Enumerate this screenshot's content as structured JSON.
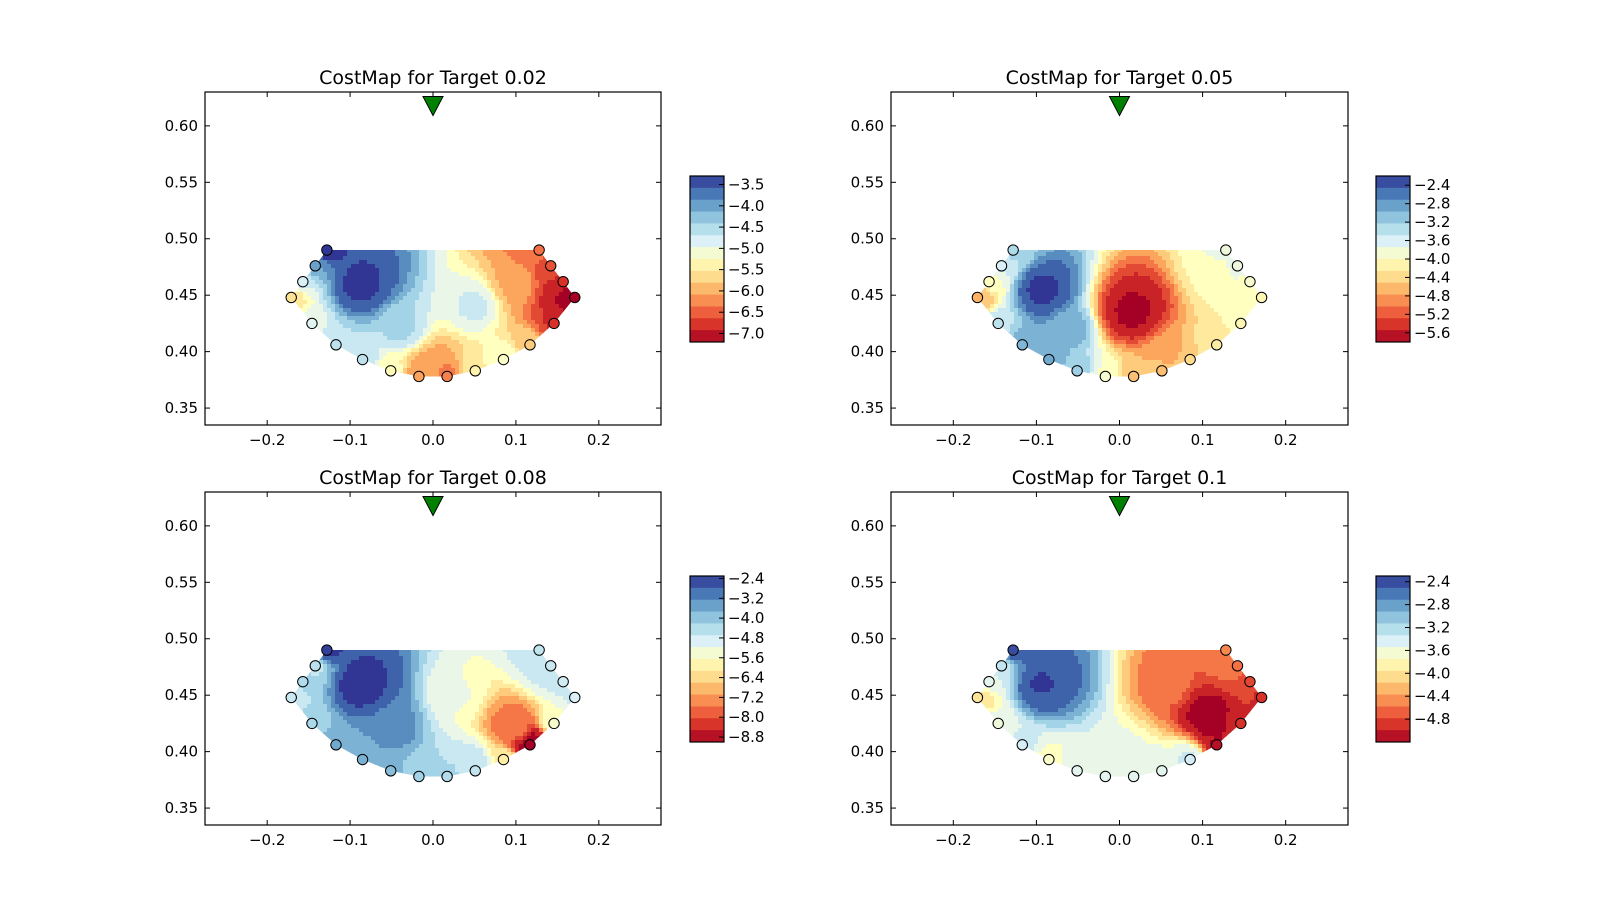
{
  "chart_data": [
    {
      "type": "heatmap",
      "title": "CostMap for Target 0.02",
      "xlim": [
        -0.275,
        0.275
      ],
      "ylim": [
        0.335,
        0.63
      ],
      "xticks": [
        "−0.2",
        "−0.1",
        "0.0",
        "0.1",
        "0.2"
      ],
      "xtick_values": [
        -0.2,
        -0.1,
        0.0,
        0.1,
        0.2
      ],
      "yticks": [
        "0.35",
        "0.40",
        "0.45",
        "0.50",
        "0.55",
        "0.60"
      ],
      "ytick_values": [
        0.35,
        0.4,
        0.45,
        0.5,
        0.55,
        0.6
      ],
      "colorbar": {
        "range": [
          -7.2,
          -3.3
        ],
        "ticks": [
          "−3.5",
          "−4.0",
          "−4.5",
          "−5.0",
          "−5.5",
          "−6.0",
          "−6.5",
          "−7.0"
        ],
        "tick_values": [
          -3.5,
          -4.0,
          -4.5,
          -5.0,
          -5.5,
          -6.0,
          -6.5,
          -7.0
        ]
      },
      "source_marker": {
        "x": 0.0,
        "y": 0.618,
        "shape": "triangle-down",
        "color": "#008000"
      },
      "field_sources": [
        {
          "x": -0.09,
          "y": 0.46,
          "v": -3.4,
          "w": 3
        },
        {
          "x": 0.165,
          "y": 0.45,
          "v": -7.1,
          "w": 3
        },
        {
          "x": 0.0,
          "y": 0.38,
          "v": -6.2,
          "w": 2
        },
        {
          "x": -0.17,
          "y": 0.448,
          "v": -5.5,
          "w": 1
        },
        {
          "x": 0.05,
          "y": 0.44,
          "v": -4.8,
          "w": 1
        },
        {
          "x": 0.1,
          "y": 0.46,
          "v": -6.0,
          "w": 1
        },
        {
          "x": -0.04,
          "y": 0.42,
          "v": -4.5,
          "w": 1
        }
      ],
      "sensors": [
        {
          "x": -0.128,
          "y": 0.49,
          "v": -3.3
        },
        {
          "x": -0.142,
          "y": 0.476,
          "v": -4.0
        },
        {
          "x": -0.157,
          "y": 0.462,
          "v": -4.8
        },
        {
          "x": -0.171,
          "y": 0.448,
          "v": -5.6
        },
        {
          "x": -0.146,
          "y": 0.425,
          "v": -4.9
        },
        {
          "x": -0.117,
          "y": 0.406,
          "v": -4.6
        },
        {
          "x": -0.085,
          "y": 0.393,
          "v": -4.6
        },
        {
          "x": -0.051,
          "y": 0.383,
          "v": -5.3
        },
        {
          "x": -0.017,
          "y": 0.378,
          "v": -6.1
        },
        {
          "x": 0.017,
          "y": 0.378,
          "v": -6.3
        },
        {
          "x": 0.051,
          "y": 0.383,
          "v": -5.4
        },
        {
          "x": 0.085,
          "y": 0.393,
          "v": -5.2
        },
        {
          "x": 0.117,
          "y": 0.406,
          "v": -5.8
        },
        {
          "x": 0.146,
          "y": 0.425,
          "v": -6.8
        },
        {
          "x": 0.171,
          "y": 0.448,
          "v": -7.2
        },
        {
          "x": 0.157,
          "y": 0.462,
          "v": -6.8
        },
        {
          "x": 0.142,
          "y": 0.476,
          "v": -6.6
        },
        {
          "x": 0.128,
          "y": 0.49,
          "v": -6.4
        }
      ]
    },
    {
      "type": "heatmap",
      "title": "CostMap for Target 0.05",
      "xlim": [
        -0.275,
        0.275
      ],
      "ylim": [
        0.335,
        0.63
      ],
      "xticks": [
        "−0.2",
        "−0.1",
        "0.0",
        "0.1",
        "0.2"
      ],
      "xtick_values": [
        -0.2,
        -0.1,
        0.0,
        0.1,
        0.2
      ],
      "yticks": [
        "0.35",
        "0.40",
        "0.45",
        "0.50",
        "0.55",
        "0.60"
      ],
      "ytick_values": [
        0.35,
        0.4,
        0.45,
        0.5,
        0.55,
        0.6
      ],
      "colorbar": {
        "range": [
          -5.8,
          -2.2
        ],
        "ticks": [
          "−2.4",
          "−2.8",
          "−3.2",
          "−3.6",
          "−4.0",
          "−4.4",
          "−4.8",
          "−5.2",
          "−5.6"
        ],
        "tick_values": [
          -2.4,
          -2.8,
          -3.2,
          -3.6,
          -4.0,
          -4.4,
          -4.8,
          -5.2,
          -5.6
        ]
      },
      "source_marker": {
        "x": 0.0,
        "y": 0.618,
        "shape": "triangle-down",
        "color": "#008000"
      },
      "field_sources": [
        {
          "x": -0.095,
          "y": 0.455,
          "v": -2.3,
          "w": 3
        },
        {
          "x": 0.015,
          "y": 0.435,
          "v": -5.7,
          "w": 3
        },
        {
          "x": -0.06,
          "y": 0.42,
          "v": -3.0,
          "w": 1
        },
        {
          "x": 0.12,
          "y": 0.47,
          "v": -4.0,
          "w": 1
        },
        {
          "x": -0.17,
          "y": 0.448,
          "v": -4.5,
          "w": 1
        },
        {
          "x": 0.06,
          "y": 0.4,
          "v": -4.8,
          "w": 1
        }
      ],
      "sensors": [
        {
          "x": -0.128,
          "y": 0.49,
          "v": -3.3
        },
        {
          "x": -0.142,
          "y": 0.476,
          "v": -3.6
        },
        {
          "x": -0.157,
          "y": 0.462,
          "v": -4.0
        },
        {
          "x": -0.171,
          "y": 0.448,
          "v": -4.7
        },
        {
          "x": -0.146,
          "y": 0.425,
          "v": -3.4
        },
        {
          "x": -0.117,
          "y": 0.406,
          "v": -3.0
        },
        {
          "x": -0.085,
          "y": 0.393,
          "v": -2.9
        },
        {
          "x": -0.051,
          "y": 0.383,
          "v": -3.2
        },
        {
          "x": -0.017,
          "y": 0.378,
          "v": -3.9
        },
        {
          "x": 0.017,
          "y": 0.378,
          "v": -4.6
        },
        {
          "x": 0.051,
          "y": 0.383,
          "v": -4.6
        },
        {
          "x": 0.085,
          "y": 0.393,
          "v": -4.4
        },
        {
          "x": 0.117,
          "y": 0.406,
          "v": -4.2
        },
        {
          "x": 0.146,
          "y": 0.425,
          "v": -4.1
        },
        {
          "x": 0.171,
          "y": 0.448,
          "v": -4.1
        },
        {
          "x": 0.157,
          "y": 0.462,
          "v": -3.9
        },
        {
          "x": 0.142,
          "y": 0.476,
          "v": -3.8
        },
        {
          "x": 0.128,
          "y": 0.49,
          "v": -3.8
        }
      ]
    },
    {
      "type": "heatmap",
      "title": "CostMap for Target 0.08",
      "xlim": [
        -0.275,
        0.275
      ],
      "ylim": [
        0.335,
        0.63
      ],
      "xticks": [
        "−0.2",
        "−0.1",
        "0.0",
        "0.1",
        "0.2"
      ],
      "xtick_values": [
        -0.2,
        -0.1,
        0.0,
        0.1,
        0.2
      ],
      "yticks": [
        "0.35",
        "0.40",
        "0.45",
        "0.50",
        "0.55",
        "0.60"
      ],
      "ytick_values": [
        0.35,
        0.4,
        0.45,
        0.5,
        0.55,
        0.6
      ],
      "colorbar": {
        "range": [
          -9.0,
          -2.3
        ],
        "ticks": [
          "−2.4",
          "−3.2",
          "−4.0",
          "−4.8",
          "−5.6",
          "−6.4",
          "−7.2",
          "−8.0",
          "−8.8"
        ],
        "tick_values": [
          -2.4,
          -3.2,
          -4.0,
          -4.8,
          -5.6,
          -6.4,
          -7.2,
          -8.0,
          -8.8
        ]
      },
      "source_marker": {
        "x": 0.0,
        "y": 0.618,
        "shape": "triangle-down",
        "color": "#008000"
      },
      "field_sources": [
        {
          "x": -0.09,
          "y": 0.46,
          "v": -2.4,
          "w": 3
        },
        {
          "x": -0.05,
          "y": 0.42,
          "v": -3.2,
          "w": 1
        },
        {
          "x": 0.1,
          "y": 0.42,
          "v": -7.6,
          "w": 2
        },
        {
          "x": 0.12,
          "y": 0.405,
          "v": -9.0,
          "w": 3
        },
        {
          "x": 0.03,
          "y": 0.45,
          "v": -5.4,
          "w": 1
        },
        {
          "x": 0.14,
          "y": 0.47,
          "v": -4.8,
          "w": 1
        },
        {
          "x": 0.05,
          "y": 0.39,
          "v": -4.6,
          "w": 1
        }
      ],
      "sensors": [
        {
          "x": -0.128,
          "y": 0.49,
          "v": -2.4
        },
        {
          "x": -0.142,
          "y": 0.476,
          "v": -4.5
        },
        {
          "x": -0.157,
          "y": 0.462,
          "v": -4.4
        },
        {
          "x": -0.171,
          "y": 0.448,
          "v": -4.7
        },
        {
          "x": -0.146,
          "y": 0.425,
          "v": -4.3
        },
        {
          "x": -0.117,
          "y": 0.406,
          "v": -3.6
        },
        {
          "x": -0.085,
          "y": 0.393,
          "v": -3.7
        },
        {
          "x": -0.051,
          "y": 0.383,
          "v": -3.9
        },
        {
          "x": -0.017,
          "y": 0.378,
          "v": -4.2
        },
        {
          "x": 0.017,
          "y": 0.378,
          "v": -4.4
        },
        {
          "x": 0.051,
          "y": 0.383,
          "v": -4.6
        },
        {
          "x": 0.085,
          "y": 0.393,
          "v": -6.0
        },
        {
          "x": 0.117,
          "y": 0.406,
          "v": -9.0
        },
        {
          "x": 0.146,
          "y": 0.425,
          "v": -5.5
        },
        {
          "x": 0.171,
          "y": 0.448,
          "v": -4.9
        },
        {
          "x": 0.157,
          "y": 0.462,
          "v": -4.8
        },
        {
          "x": 0.142,
          "y": 0.476,
          "v": -4.7
        },
        {
          "x": 0.128,
          "y": 0.49,
          "v": -4.6
        }
      ]
    },
    {
      "type": "heatmap",
      "title": "CostMap for Target 0.1",
      "xlim": [
        -0.275,
        0.275
      ],
      "ylim": [
        0.335,
        0.63
      ],
      "xticks": [
        "−0.2",
        "−0.1",
        "0.0",
        "0.1",
        "0.2"
      ],
      "xtick_values": [
        -0.2,
        -0.1,
        0.0,
        0.1,
        0.2
      ],
      "yticks": [
        "0.35",
        "0.40",
        "0.45",
        "0.50",
        "0.55",
        "0.60"
      ],
      "ytick_values": [
        0.35,
        0.4,
        0.45,
        0.5,
        0.55,
        0.6
      ],
      "colorbar": {
        "range": [
          -5.2,
          -2.3
        ],
        "ticks": [
          "−2.4",
          "−2.8",
          "−3.2",
          "−3.6",
          "−4.0",
          "−4.4",
          "−4.8"
        ],
        "tick_values": [
          -2.4,
          -2.8,
          -3.2,
          -3.6,
          -4.0,
          -4.4,
          -4.8
        ]
      },
      "source_marker": {
        "x": 0.0,
        "y": 0.618,
        "shape": "triangle-down",
        "color": "#008000"
      },
      "field_sources": [
        {
          "x": -0.095,
          "y": 0.46,
          "v": -2.4,
          "w": 3
        },
        {
          "x": 0.11,
          "y": 0.43,
          "v": -5.2,
          "w": 3
        },
        {
          "x": 0.06,
          "y": 0.46,
          "v": -4.6,
          "w": 1
        },
        {
          "x": 0.0,
          "y": 0.39,
          "v": -3.5,
          "w": 1
        },
        {
          "x": -0.17,
          "y": 0.448,
          "v": -4.0,
          "w": 1
        },
        {
          "x": 0.14,
          "y": 0.48,
          "v": -4.6,
          "w": 1
        }
      ],
      "sensors": [
        {
          "x": -0.128,
          "y": 0.49,
          "v": -2.4
        },
        {
          "x": -0.142,
          "y": 0.476,
          "v": -3.3
        },
        {
          "x": -0.157,
          "y": 0.462,
          "v": -3.5
        },
        {
          "x": -0.171,
          "y": 0.448,
          "v": -4.0
        },
        {
          "x": -0.146,
          "y": 0.425,
          "v": -3.6
        },
        {
          "x": -0.117,
          "y": 0.406,
          "v": -3.4
        },
        {
          "x": -0.085,
          "y": 0.393,
          "v": -3.7
        },
        {
          "x": -0.051,
          "y": 0.383,
          "v": -3.5
        },
        {
          "x": -0.017,
          "y": 0.378,
          "v": -3.5
        },
        {
          "x": 0.017,
          "y": 0.378,
          "v": -3.5
        },
        {
          "x": 0.051,
          "y": 0.383,
          "v": -3.5
        },
        {
          "x": 0.085,
          "y": 0.393,
          "v": -3.4
        },
        {
          "x": 0.117,
          "y": 0.406,
          "v": -5.1
        },
        {
          "x": 0.146,
          "y": 0.425,
          "v": -4.9
        },
        {
          "x": 0.171,
          "y": 0.448,
          "v": -4.9
        },
        {
          "x": 0.157,
          "y": 0.462,
          "v": -4.8
        },
        {
          "x": 0.142,
          "y": 0.476,
          "v": -4.6
        },
        {
          "x": 0.128,
          "y": 0.49,
          "v": -4.5
        }
      ]
    }
  ],
  "colormap": [
    "#a50026",
    "#d73027",
    "#f46d43",
    "#fdae61",
    "#fee090",
    "#ffffbf",
    "#e0f3f8",
    "#abd9e9",
    "#74add1",
    "#4575b4",
    "#313695"
  ]
}
